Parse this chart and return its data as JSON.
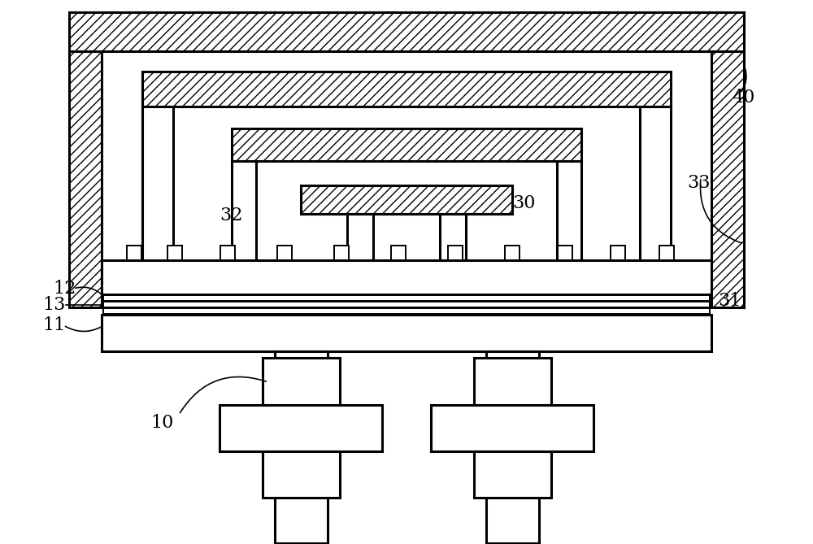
{
  "background_color": "#ffffff",
  "line_color": "#000000",
  "lw": 2.2,
  "lw_thin": 1.4,
  "figsize": [
    10.0,
    6.69
  ],
  "dpi": 100
}
